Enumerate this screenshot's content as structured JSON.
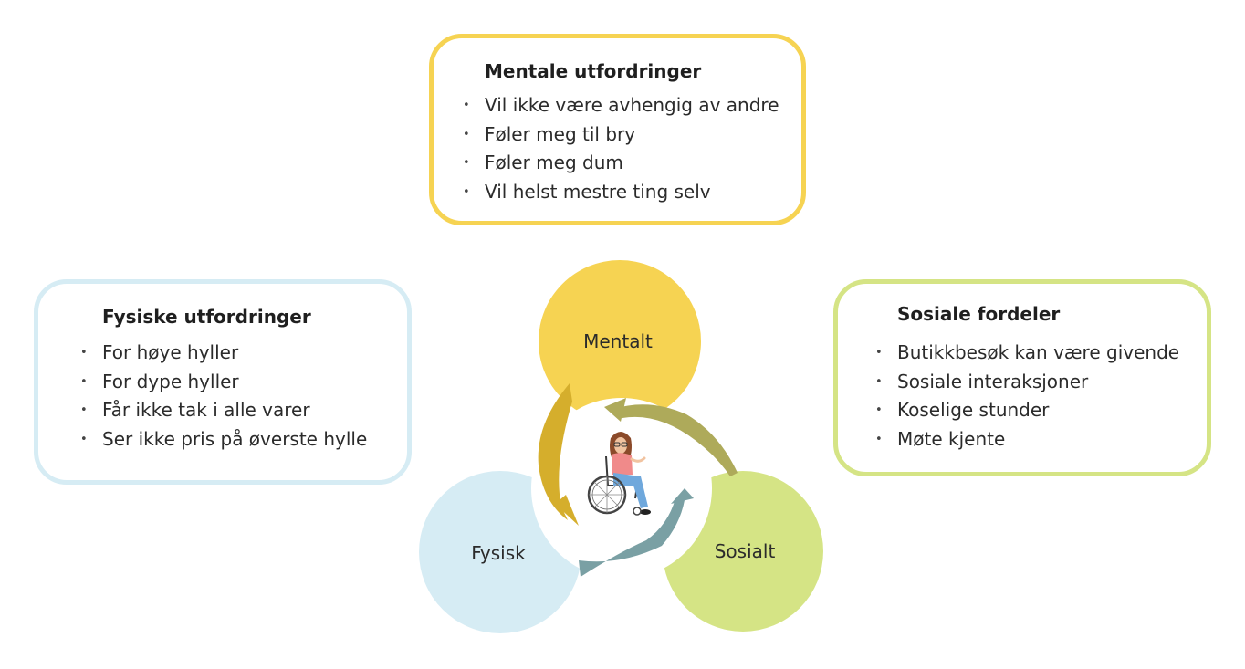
{
  "mental": {
    "title": "Mentale utfordringer",
    "items": [
      "Vil ikke være avhengig av andre",
      "Føler meg til bry",
      "Føler meg dum",
      "Vil helst mestre ting selv"
    ],
    "color": "#f6d352"
  },
  "fysisk": {
    "title": "Fysiske utfordringer",
    "items": [
      "For høye hyller",
      "For dype hyller",
      "Får ikke tak i alle varer",
      "Ser ikke pris på øverste hylle"
    ],
    "color": "#d6ecf4"
  },
  "sosial": {
    "title": "Sosiale fordeler",
    "items": [
      "Butikkbesøk kan være givende",
      "Sosiale interaksjoner",
      "Koselige stunder",
      "Møte kjente"
    ],
    "color": "#d5e485"
  },
  "cycle": {
    "mentalt": "Mentalt",
    "fysisk": "Fysisk",
    "sosialt": "Sosialt",
    "center_icon": "wheelchair-user-icon"
  }
}
